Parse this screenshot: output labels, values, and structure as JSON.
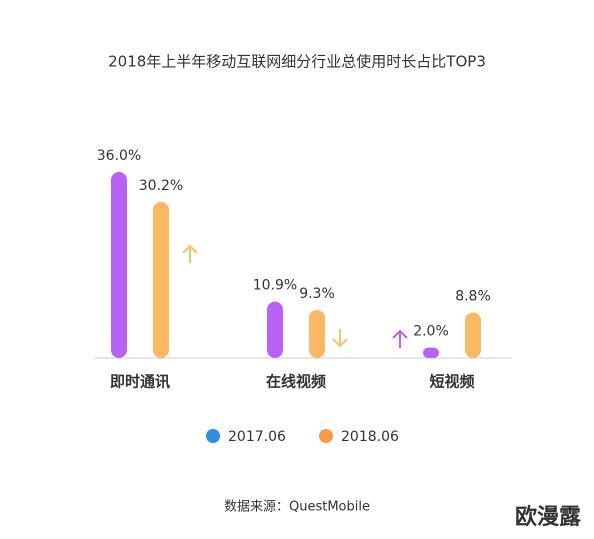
{
  "chart_data": {
    "type": "bar",
    "title": "2018年上半年移动互联网细分行业总使用时长占比TOP3",
    "categories": [
      "即时通讯",
      "在线视频",
      "短视频"
    ],
    "series": [
      {
        "name": "2017.06",
        "color": "#b862f5",
        "legend_color": "#2f8de6",
        "values": [
          36.0,
          10.9,
          2.0
        ],
        "value_labels": [
          "36.0%",
          "10.9%",
          "2.0%"
        ]
      },
      {
        "name": "2018.06",
        "color": "#fbb762",
        "legend_color": "#fb9a45",
        "values": [
          30.2,
          9.3,
          8.8
        ],
        "value_labels": [
          "30.2%",
          "9.3%",
          "8.8%"
        ]
      }
    ],
    "ylim": [
      0,
      36
    ],
    "source": "数据来源：QuestMobile",
    "watermark": "欧漫露"
  }
}
